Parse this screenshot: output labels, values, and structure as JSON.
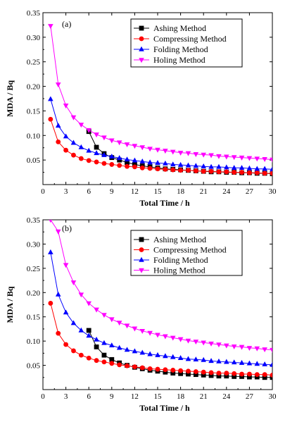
{
  "chart_data": [
    {
      "type": "line",
      "panel_label": "(a)",
      "xlabel": "Total Time / h",
      "ylabel": "MDA / Bq",
      "xlim": [
        0,
        30
      ],
      "ylim": [
        0.0,
        0.35
      ],
      "xticks": [
        0,
        3,
        6,
        9,
        12,
        15,
        18,
        21,
        24,
        27,
        30
      ],
      "yticks": [
        0.05,
        0.1,
        0.15,
        0.2,
        0.25,
        0.3,
        0.35
      ],
      "grid": false,
      "legend_position": "top-right",
      "series": [
        {
          "name": "Ashing Method",
          "color": "#000000",
          "marker": "square",
          "x": [
            6,
            7,
            8,
            9,
            10,
            11,
            12,
            13,
            14,
            15,
            16,
            17,
            18,
            19,
            20,
            21,
            22,
            23,
            24,
            25,
            26,
            27,
            28,
            29,
            30
          ],
          "y": [
            0.108,
            0.076,
            0.063,
            0.055,
            0.05,
            0.045,
            0.041,
            0.038,
            0.036,
            0.034,
            0.032,
            0.031,
            0.03,
            0.029,
            0.028,
            0.027,
            0.026,
            0.026,
            0.025,
            0.025,
            0.024,
            0.024,
            0.023,
            0.023,
            0.022
          ]
        },
        {
          "name": "Compressing Method",
          "color": "#ff0000",
          "marker": "circle",
          "x": [
            1,
            2,
            3,
            4,
            5,
            6,
            7,
            8,
            9,
            10,
            11,
            12,
            13,
            14,
            15,
            16,
            17,
            18,
            19,
            20,
            21,
            22,
            23,
            24,
            25,
            26,
            27,
            28,
            29,
            30
          ],
          "y": [
            0.133,
            0.087,
            0.07,
            0.06,
            0.053,
            0.049,
            0.046,
            0.043,
            0.041,
            0.039,
            0.037,
            0.036,
            0.034,
            0.033,
            0.032,
            0.031,
            0.03,
            0.029,
            0.029,
            0.028,
            0.027,
            0.027,
            0.026,
            0.026,
            0.025,
            0.025,
            0.024,
            0.024,
            0.023,
            0.023
          ]
        },
        {
          "name": "Folding Method",
          "color": "#0000ff",
          "marker": "triangle-up",
          "x": [
            1,
            2,
            3,
            4,
            5,
            6,
            7,
            8,
            9,
            10,
            11,
            12,
            13,
            14,
            15,
            16,
            17,
            18,
            19,
            20,
            21,
            22,
            23,
            24,
            25,
            26,
            27,
            28,
            29,
            30
          ],
          "y": [
            0.174,
            0.12,
            0.098,
            0.085,
            0.076,
            0.069,
            0.064,
            0.06,
            0.057,
            0.054,
            0.051,
            0.049,
            0.047,
            0.045,
            0.044,
            0.043,
            0.041,
            0.04,
            0.039,
            0.038,
            0.037,
            0.036,
            0.036,
            0.035,
            0.034,
            0.034,
            0.033,
            0.032,
            0.032,
            0.031
          ]
        },
        {
          "name": "Holing Method",
          "color": "#ff00ff",
          "marker": "triangle-down",
          "x": [
            1,
            2,
            3,
            4,
            5,
            6,
            7,
            8,
            9,
            10,
            11,
            12,
            13,
            14,
            15,
            16,
            17,
            18,
            19,
            20,
            21,
            22,
            23,
            24,
            25,
            26,
            27,
            28,
            29,
            30
          ],
          "y": [
            0.323,
            0.204,
            0.161,
            0.137,
            0.122,
            0.111,
            0.102,
            0.096,
            0.09,
            0.086,
            0.082,
            0.079,
            0.076,
            0.073,
            0.071,
            0.069,
            0.067,
            0.065,
            0.064,
            0.062,
            0.061,
            0.06,
            0.058,
            0.057,
            0.056,
            0.055,
            0.054,
            0.053,
            0.052,
            0.051
          ]
        }
      ]
    },
    {
      "type": "line",
      "panel_label": "(b)",
      "xlabel": "Total Time / h",
      "ylabel": "MDA / Bq",
      "xlim": [
        0,
        30
      ],
      "ylim": [
        0.0,
        0.35
      ],
      "xticks": [
        0,
        3,
        6,
        9,
        12,
        15,
        18,
        21,
        24,
        27,
        30
      ],
      "yticks": [
        0.05,
        0.1,
        0.15,
        0.2,
        0.25,
        0.3,
        0.35
      ],
      "grid": false,
      "legend_position": "top-right",
      "series": [
        {
          "name": "Ashing Method",
          "color": "#000000",
          "marker": "square",
          "x": [
            6,
            7,
            8,
            9,
            10,
            11,
            12,
            13,
            14,
            15,
            16,
            17,
            18,
            19,
            20,
            21,
            22,
            23,
            24,
            25,
            26,
            27,
            28,
            29,
            30
          ],
          "y": [
            0.122,
            0.088,
            0.071,
            0.062,
            0.055,
            0.05,
            0.046,
            0.043,
            0.04,
            0.038,
            0.036,
            0.034,
            0.033,
            0.032,
            0.031,
            0.03,
            0.029,
            0.028,
            0.028,
            0.027,
            0.027,
            0.026,
            0.026,
            0.025,
            0.025
          ]
        },
        {
          "name": "Compressing Method",
          "color": "#ff0000",
          "marker": "circle",
          "x": [
            1,
            2,
            3,
            4,
            5,
            6,
            7,
            8,
            9,
            10,
            11,
            12,
            13,
            14,
            15,
            16,
            17,
            18,
            19,
            20,
            21,
            22,
            23,
            24,
            25,
            26,
            27,
            28,
            29,
            30
          ],
          "y": [
            0.178,
            0.116,
            0.093,
            0.08,
            0.071,
            0.065,
            0.06,
            0.057,
            0.054,
            0.051,
            0.049,
            0.047,
            0.045,
            0.043,
            0.042,
            0.041,
            0.04,
            0.039,
            0.038,
            0.037,
            0.036,
            0.035,
            0.034,
            0.034,
            0.033,
            0.032,
            0.032,
            0.031,
            0.031,
            0.03
          ]
        },
        {
          "name": "Folding Method",
          "color": "#0000ff",
          "marker": "triangle-up",
          "x": [
            1,
            2,
            3,
            4,
            5,
            6,
            7,
            8,
            9,
            10,
            11,
            12,
            13,
            14,
            15,
            16,
            17,
            18,
            19,
            20,
            21,
            22,
            23,
            24,
            25,
            26,
            27,
            28,
            29,
            30
          ],
          "y": [
            0.283,
            0.196,
            0.159,
            0.137,
            0.122,
            0.111,
            0.103,
            0.096,
            0.091,
            0.086,
            0.082,
            0.079,
            0.076,
            0.073,
            0.071,
            0.069,
            0.067,
            0.065,
            0.063,
            0.062,
            0.061,
            0.059,
            0.058,
            0.057,
            0.056,
            0.055,
            0.054,
            0.053,
            0.052,
            0.051
          ]
        },
        {
          "name": "Holing Method",
          "color": "#ff00ff",
          "marker": "triangle-down",
          "x": [
            1,
            2,
            3,
            4,
            5,
            6,
            7,
            8,
            9,
            10,
            11,
            12,
            13,
            14,
            15,
            16,
            17,
            18,
            19,
            20,
            21,
            22,
            23,
            24,
            25,
            26,
            27,
            28,
            29,
            30
          ],
          "y": [
            0.35,
            0.326,
            0.257,
            0.221,
            0.196,
            0.178,
            0.165,
            0.154,
            0.145,
            0.138,
            0.132,
            0.126,
            0.121,
            0.117,
            0.113,
            0.11,
            0.107,
            0.104,
            0.101,
            0.099,
            0.097,
            0.095,
            0.093,
            0.091,
            0.089,
            0.088,
            0.086,
            0.085,
            0.083,
            0.082
          ]
        }
      ]
    }
  ]
}
